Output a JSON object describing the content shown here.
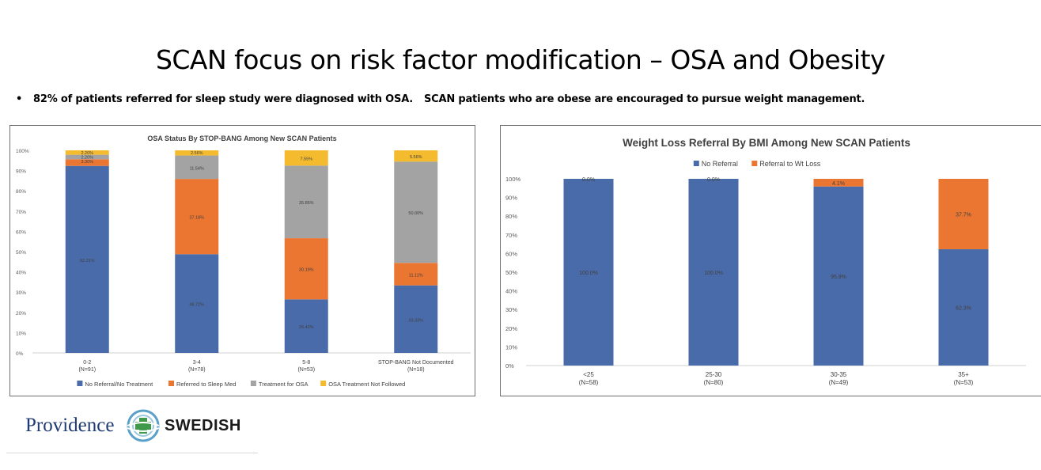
{
  "slide": {
    "title": "SCAN focus on risk factor modification – OSA and Obesity",
    "bullet_symbol": "•",
    "bullet1": "82% of patients referred for sleep study were diagnosed with OSA.",
    "bullet2": "SCAN patients who are obese are encouraged to pursue weight management."
  },
  "logo": {
    "left_text": "Providence",
    "right_text": "SWEDISH"
  },
  "colors": {
    "blue": "#4a6ba9",
    "orange": "#eb7632",
    "gray": "#a3a3a3",
    "yellow": "#f5bb2f"
  },
  "chart_data": [
    {
      "type": "bar",
      "stacked": true,
      "title": "OSA Status By STOP-BANG Among New SCAN Patients",
      "categories": [
        "0-2",
        "3-4",
        "5-8",
        "STOP-BANG Not Documented"
      ],
      "category_sublabels": [
        "(N=91)",
        "(N=78)",
        "(N=53)",
        "(N=18)"
      ],
      "ylim": [
        0,
        100
      ],
      "yticks": [
        "0%",
        "10%",
        "20%",
        "30%",
        "40%",
        "50%",
        "60%",
        "70%",
        "80%",
        "90%",
        "100%"
      ],
      "legend_position": "bottom",
      "series": [
        {
          "name": "No Referral/No Treatment",
          "color": "#4a6ba9",
          "values": [
            92.31,
            48.72,
            26.42,
            33.33
          ],
          "labels": [
            "92.31%",
            "48.72%",
            "26.42%",
            "33.33%"
          ]
        },
        {
          "name": "Referred to Sleep Med",
          "color": "#eb7632",
          "values": [
            3.3,
            37.18,
            30.19,
            11.11
          ],
          "labels": [
            "3.30%",
            "37.18%",
            "30.19%",
            "11.11%"
          ]
        },
        {
          "name": "Treatment for OSA",
          "color": "#a3a3a3",
          "values": [
            2.2,
            11.54,
            35.85,
            50.0
          ],
          "labels": [
            "2.20%",
            "11.54%",
            "35.85%",
            "50.00%"
          ]
        },
        {
          "name": "OSA Treatment Not Followed",
          "color": "#f5bb2f",
          "values": [
            2.2,
            2.56,
            7.55,
            5.56
          ],
          "labels": [
            "2.20%",
            "2.56%",
            "7.55%",
            "5.56%"
          ]
        }
      ]
    },
    {
      "type": "bar",
      "stacked": true,
      "title": "Weight Loss Referral By BMI Among New SCAN Patients",
      "categories": [
        "<25",
        "25-30",
        "30-35",
        "35+"
      ],
      "category_sublabels": [
        "(N=58)",
        "(N=80)",
        "(N=49)",
        "(N=53)"
      ],
      "ylim": [
        0,
        100
      ],
      "yticks": [
        "0%",
        "10%",
        "20%",
        "30%",
        "40%",
        "50%",
        "60%",
        "70%",
        "80%",
        "90%",
        "100%"
      ],
      "legend_position": "top",
      "series": [
        {
          "name": "No Referral",
          "color": "#4a6ba9",
          "values": [
            100.0,
            100.0,
            95.9,
            62.3
          ],
          "labels": [
            "100.0%",
            "100.0%",
            "95.9%",
            "62.3%"
          ]
        },
        {
          "name": "Referral to Wt Loss",
          "color": "#eb7632",
          "values": [
            0.0,
            0.0,
            4.1,
            37.7
          ],
          "labels": [
            "0.0%",
            "0.0%",
            "4.1%",
            "37.7%"
          ]
        }
      ]
    }
  ]
}
